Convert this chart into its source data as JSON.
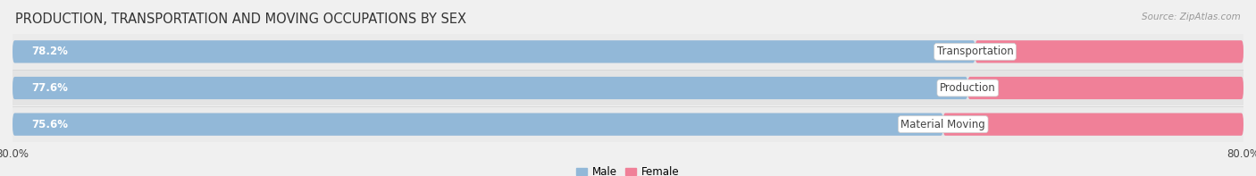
{
  "title": "PRODUCTION, TRANSPORTATION AND MOVING OCCUPATIONS BY SEX",
  "source": "Source: ZipAtlas.com",
  "categories": [
    "Transportation",
    "Production",
    "Material Moving"
  ],
  "male_pct": [
    78.2,
    77.6,
    75.6
  ],
  "female_pct": [
    21.8,
    22.4,
    24.4
  ],
  "male_color": "#92b8d8",
  "female_color": "#f08098",
  "male_light": "#b8d0e8",
  "female_light": "#f4b0c0",
  "bg_color": "#f0f0f0",
  "bar_track_color": "#e0e4e8",
  "row_bg_light": "#ebebeb",
  "row_bg_dark": "#e4e4e4",
  "axis_range": 80.0,
  "title_fontsize": 10.5,
  "label_fontsize": 8.5,
  "pct_fontsize": 8.5,
  "tick_fontsize": 8.5,
  "legend_labels": [
    "Male",
    "Female"
  ],
  "white": "#ffffff",
  "text_dark": "#444444",
  "text_white": "#ffffff"
}
